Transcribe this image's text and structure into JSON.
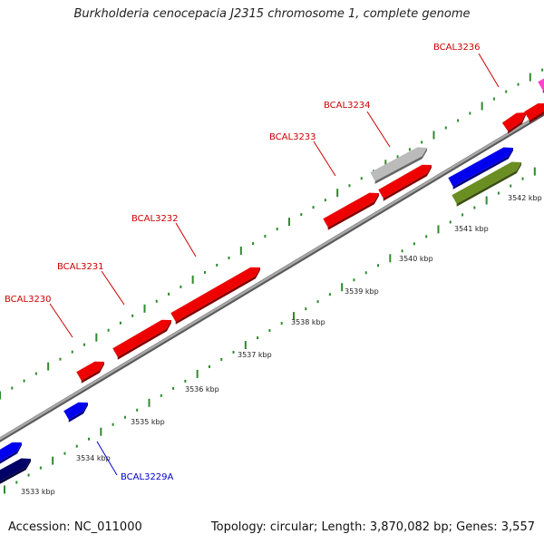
{
  "title": "Burkholderia cenocepacia J2315 chromosome 1, complete genome",
  "footer": {
    "accession": "Accession: NC_011000",
    "summary": "Topology: circular; Length: 3,870,082 bp; Genes: 3,557"
  },
  "colors": {
    "backbone": "#8a8a8a",
    "dots": "#2d8a2d",
    "gene_label_red": "#cc0000",
    "gene_label_blue": "#0000cc"
  },
  "scale_ticks": [
    "3533 kbp",
    "3534 kbp",
    "3535 kbp",
    "3536 kbp",
    "3537 kbp",
    "3538 kbp",
    "3539 kbp",
    "3540 kbp",
    "3541 kbp",
    "3542 kbp"
  ],
  "gene_labels": [
    {
      "text": "BCAL3229A",
      "color": "#0000cc"
    },
    {
      "text": "BCAL3230",
      "color": "#cc0000"
    },
    {
      "text": "BCAL3231",
      "color": "#cc0000"
    },
    {
      "text": "BCAL3232",
      "color": "#cc0000"
    },
    {
      "text": "BCAL3233",
      "color": "#cc0000"
    },
    {
      "text": "BCAL3234",
      "color": "#cc0000"
    },
    {
      "text": "BCAL3236",
      "color": "#cc0000"
    }
  ],
  "feature_colors": [
    "#ee0000",
    "#0000ee",
    "#000066",
    "#bbbbbb",
    "#6b8e23",
    "#ff44cc"
  ]
}
